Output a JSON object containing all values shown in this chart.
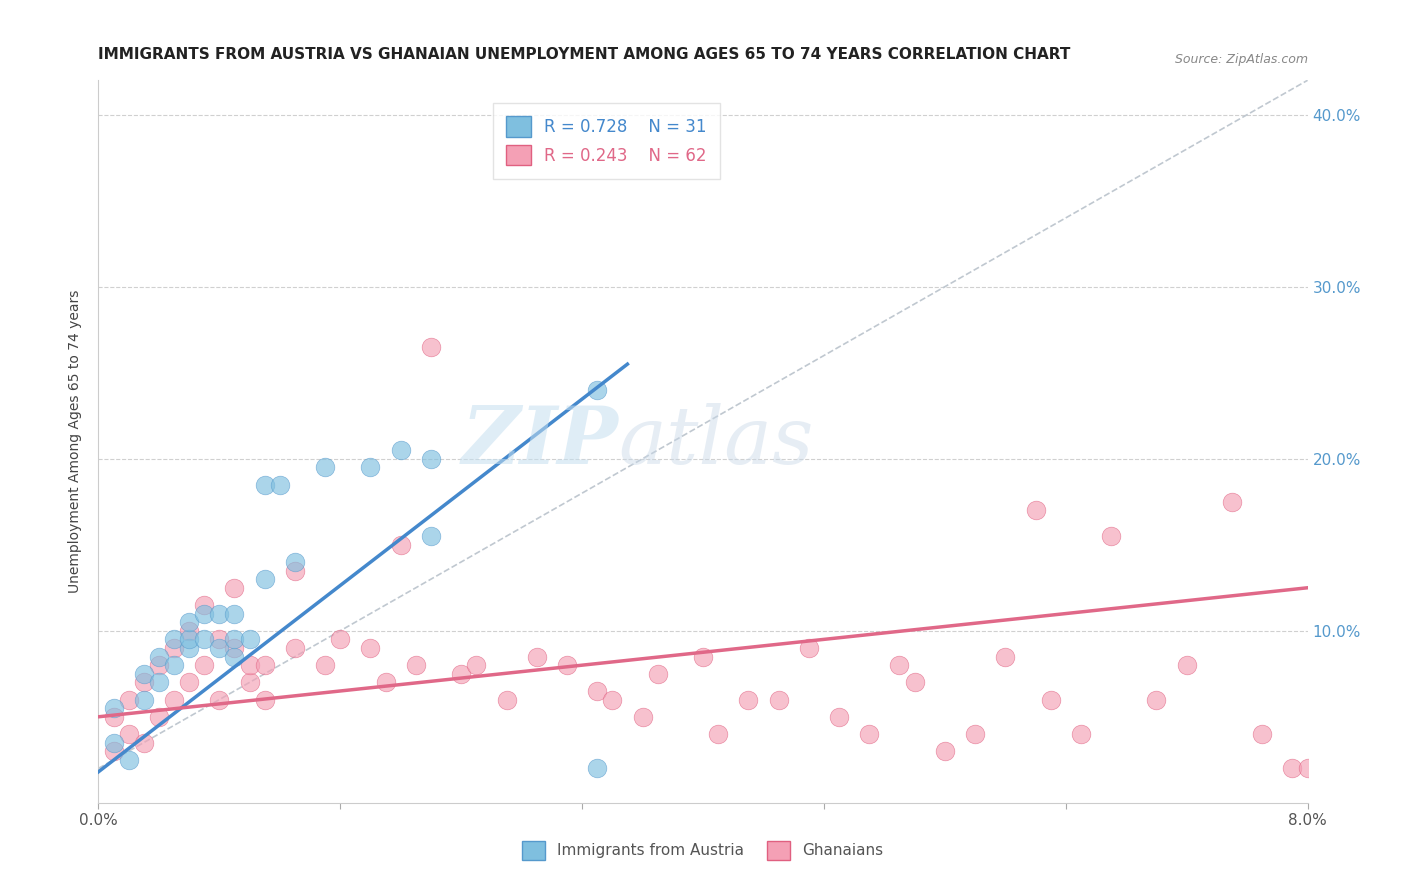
{
  "title": "IMMIGRANTS FROM AUSTRIA VS GHANAIAN UNEMPLOYMENT AMONG AGES 65 TO 74 YEARS CORRELATION CHART",
  "source": "Source: ZipAtlas.com",
  "ylabel": "Unemployment Among Ages 65 to 74 years",
  "xlim": [
    0.0,
    0.08
  ],
  "ylim": [
    0.0,
    0.42
  ],
  "yticks_right": [
    0.1,
    0.2,
    0.3,
    0.4
  ],
  "ytick_labels_right": [
    "10.0%",
    "20.0%",
    "30.0%",
    "40.0%"
  ],
  "xticks": [
    0.0,
    0.016,
    0.032,
    0.048,
    0.064,
    0.08
  ],
  "xtick_labels": [
    "0.0%",
    "",
    "",
    "",
    "",
    "8.0%"
  ],
  "watermark_zip": "ZIP",
  "watermark_atlas": "atlas",
  "legend_r1": "R = 0.728",
  "legend_n1": "N = 31",
  "legend_r2": "R = 0.243",
  "legend_n2": "N = 62",
  "color_austria": "#7fbfdf",
  "color_ghana": "#f4a0b5",
  "color_austria_edge": "#5599cc",
  "color_ghana_edge": "#e06080",
  "color_line_austria": "#4488cc",
  "color_line_ghana": "#e06888",
  "color_trend_dashed": "#c0c8d0",
  "title_fontsize": 11,
  "axis_label_fontsize": 10,
  "tick_fontsize": 11,
  "austria_scatter_x": [
    0.001,
    0.001,
    0.002,
    0.003,
    0.003,
    0.004,
    0.004,
    0.005,
    0.005,
    0.006,
    0.006,
    0.006,
    0.007,
    0.007,
    0.008,
    0.008,
    0.009,
    0.009,
    0.009,
    0.01,
    0.011,
    0.011,
    0.012,
    0.013,
    0.015,
    0.018,
    0.02,
    0.022,
    0.022,
    0.033,
    0.033
  ],
  "austria_scatter_y": [
    0.035,
    0.055,
    0.025,
    0.06,
    0.075,
    0.07,
    0.085,
    0.08,
    0.095,
    0.09,
    0.095,
    0.105,
    0.095,
    0.11,
    0.09,
    0.11,
    0.085,
    0.095,
    0.11,
    0.095,
    0.13,
    0.185,
    0.185,
    0.14,
    0.195,
    0.195,
    0.205,
    0.155,
    0.2,
    0.24,
    0.02
  ],
  "ghana_scatter_x": [
    0.001,
    0.001,
    0.002,
    0.002,
    0.003,
    0.003,
    0.004,
    0.004,
    0.005,
    0.005,
    0.006,
    0.006,
    0.007,
    0.007,
    0.008,
    0.008,
    0.009,
    0.009,
    0.01,
    0.01,
    0.011,
    0.011,
    0.013,
    0.013,
    0.015,
    0.016,
    0.018,
    0.019,
    0.02,
    0.021,
    0.022,
    0.024,
    0.025,
    0.027,
    0.029,
    0.031,
    0.033,
    0.034,
    0.036,
    0.037,
    0.04,
    0.041,
    0.043,
    0.045,
    0.047,
    0.049,
    0.051,
    0.053,
    0.054,
    0.056,
    0.058,
    0.06,
    0.062,
    0.063,
    0.065,
    0.067,
    0.07,
    0.072,
    0.075,
    0.077,
    0.079,
    0.08
  ],
  "ghana_scatter_y": [
    0.03,
    0.05,
    0.04,
    0.06,
    0.035,
    0.07,
    0.05,
    0.08,
    0.06,
    0.09,
    0.1,
    0.07,
    0.08,
    0.115,
    0.06,
    0.095,
    0.09,
    0.125,
    0.07,
    0.08,
    0.08,
    0.06,
    0.09,
    0.135,
    0.08,
    0.095,
    0.09,
    0.07,
    0.15,
    0.08,
    0.265,
    0.075,
    0.08,
    0.06,
    0.085,
    0.08,
    0.065,
    0.06,
    0.05,
    0.075,
    0.085,
    0.04,
    0.06,
    0.06,
    0.09,
    0.05,
    0.04,
    0.08,
    0.07,
    0.03,
    0.04,
    0.085,
    0.17,
    0.06,
    0.04,
    0.155,
    0.06,
    0.08,
    0.175,
    0.04,
    0.02,
    0.02
  ],
  "austria_line_x0": 0.0,
  "austria_line_y0": 0.018,
  "austria_line_x1": 0.035,
  "austria_line_y1": 0.255,
  "ghana_line_x0": 0.0,
  "ghana_line_y0": 0.05,
  "ghana_line_x1": 0.08,
  "ghana_line_y1": 0.125,
  "diag_line_x0": 0.0,
  "diag_line_y0": 0.02,
  "diag_line_x1": 0.08,
  "diag_line_y1": 0.42
}
